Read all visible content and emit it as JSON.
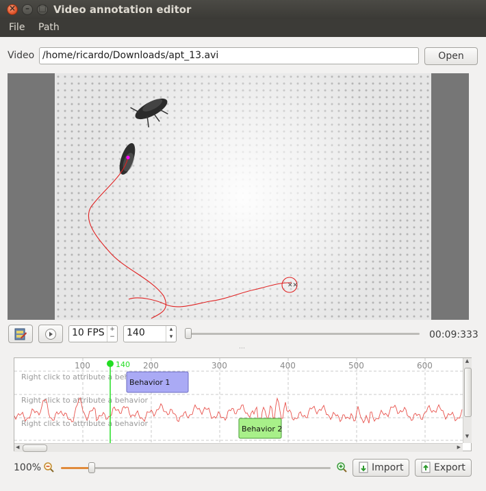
{
  "window": {
    "title": "Video annotation editor"
  },
  "menu": {
    "items": [
      "File",
      "Path"
    ]
  },
  "video_row": {
    "label": "Video",
    "path": "/home/ricardo/Downloads/apt_13.avi",
    "open_label": "Open"
  },
  "controls": {
    "fps": "10 FPS",
    "frame": "140",
    "time": "00:09:333",
    "frame_slider_fraction": 0.0
  },
  "timeline": {
    "ticks": [
      "100",
      "200",
      "300",
      "400",
      "500",
      "600"
    ],
    "cursor_label": "140",
    "row_hint": "Right click to attribute a behavior",
    "behaviors": [
      {
        "label": "Behavior 1",
        "color": "#aaaaf5"
      },
      {
        "label": "Behavior 2",
        "color": "#a8f089"
      }
    ],
    "trace_color": "#e8504a",
    "cursor_color": "#22dd22"
  },
  "bottom": {
    "zoom": "100%",
    "zoom_slider_fraction": 0.25,
    "import_label": "Import",
    "export_label": "Export"
  },
  "colors": {
    "path": "#e02020",
    "marker": "#ff00ff"
  }
}
